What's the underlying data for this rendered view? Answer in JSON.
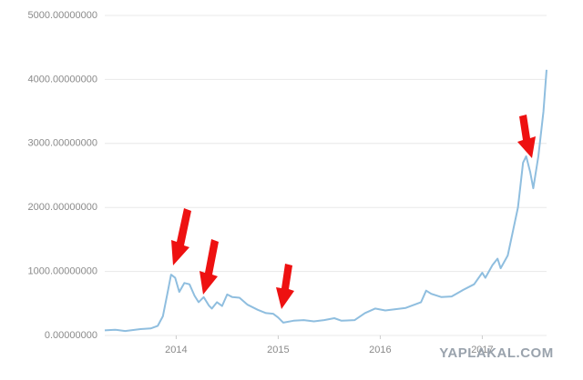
{
  "chart_data": {
    "type": "line",
    "watermark": "YAPLAKAL.COM",
    "x": [
      2013.3,
      2013.4,
      2013.5,
      2013.65,
      2013.75,
      2013.82,
      2013.87,
      2013.92,
      2013.95,
      2013.99,
      2014.03,
      2014.08,
      2014.13,
      2014.18,
      2014.22,
      2014.27,
      2014.32,
      2014.35,
      2014.4,
      2014.45,
      2014.5,
      2014.55,
      2014.62,
      2014.7,
      2014.8,
      2014.88,
      2014.95,
      2015.0,
      2015.05,
      2015.15,
      2015.25,
      2015.35,
      2015.45,
      2015.55,
      2015.62,
      2015.75,
      2015.85,
      2015.95,
      2016.05,
      2016.15,
      2016.25,
      2016.4,
      2016.45,
      2016.5,
      2016.6,
      2016.7,
      2016.8,
      2016.92,
      2017.0,
      2017.03,
      2017.1,
      2017.15,
      2017.18,
      2017.25,
      2017.35,
      2017.4,
      2017.43,
      2017.47,
      2017.5,
      2017.55,
      2017.6,
      2017.63
    ],
    "series": [
      {
        "color": "#8fbedf",
        "values": [
          80,
          90,
          70,
          100,
          110,
          150,
          300,
          700,
          950,
          900,
          680,
          820,
          800,
          620,
          520,
          600,
          470,
          420,
          520,
          460,
          640,
          600,
          590,
          480,
          400,
          350,
          340,
          280,
          200,
          230,
          240,
          220,
          240,
          270,
          230,
          240,
          350,
          420,
          390,
          410,
          430,
          520,
          700,
          650,
          600,
          610,
          700,
          800,
          980,
          900,
          1100,
          1200,
          1050,
          1250,
          2000,
          2700,
          2800,
          2550,
          2300,
          2800,
          3500,
          4150
        ]
      }
    ],
    "xlim": [
      2013.3,
      2017.63
    ],
    "xticks": [
      2014,
      2015,
      2016,
      2017
    ],
    "ylim": [
      0,
      5000
    ],
    "yticks": [
      {
        "value": 0,
        "label": "0.00000000"
      },
      {
        "value": 1000,
        "label": "1000.00000000"
      },
      {
        "value": 2000,
        "label": "2000.00000000"
      },
      {
        "value": 3000,
        "label": "3000.00000000"
      },
      {
        "value": 4000,
        "label": "4000.00000000"
      },
      {
        "value": 5000,
        "label": "5000.00000000"
      }
    ],
    "grid": true
  }
}
